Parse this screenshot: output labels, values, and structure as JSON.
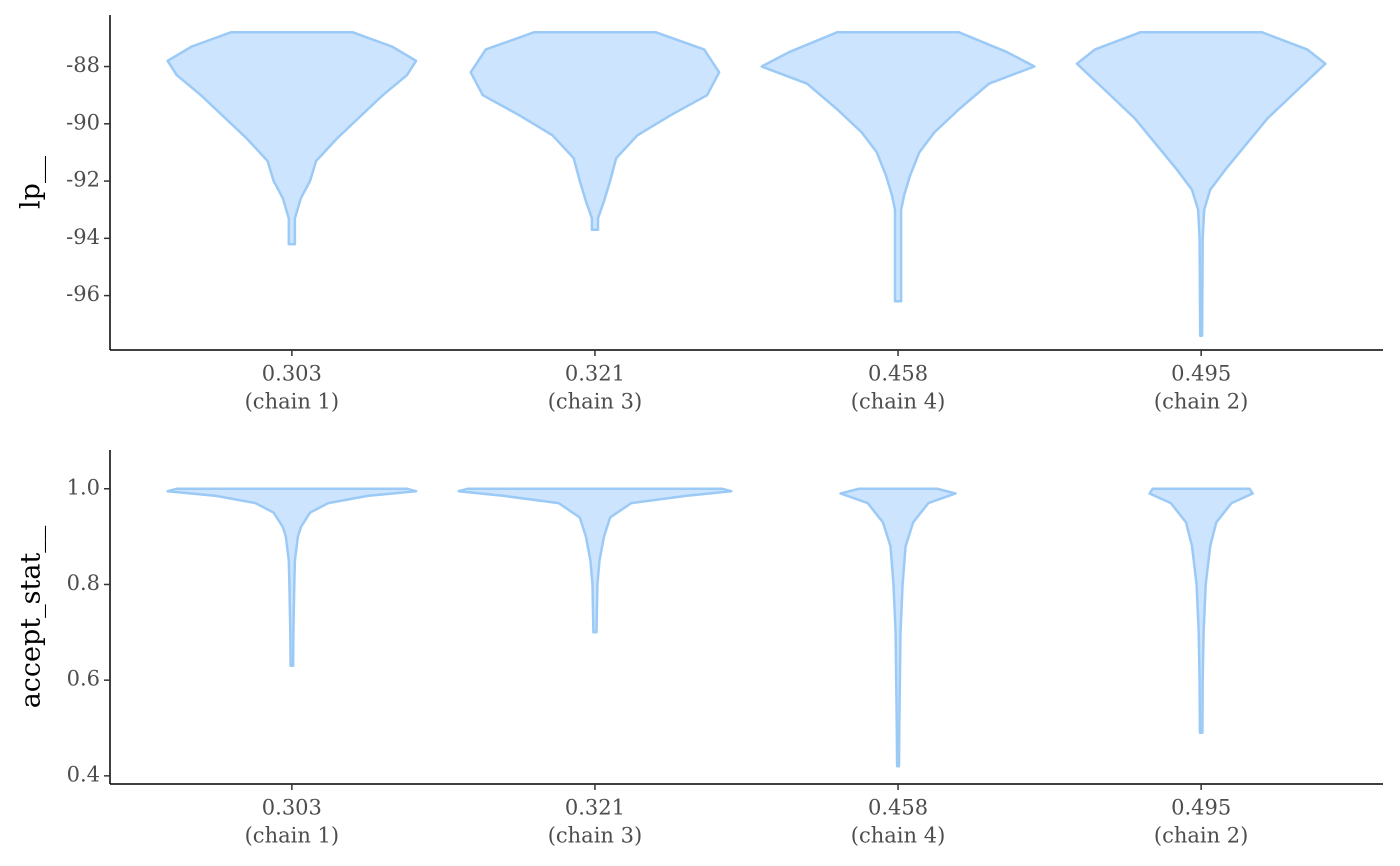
{
  "chart_data": [
    {
      "type": "violin",
      "y_label": "lp__",
      "categories": [
        "0.303",
        "0.321",
        "0.458",
        "0.495"
      ],
      "category_sublabels": [
        "(chain 1)",
        "(chain 3)",
        "(chain 4)",
        "(chain 2)"
      ],
      "fill": "#cce4fd",
      "color": "#9ccaf6",
      "ylim": [
        -97.9,
        -86.2
      ],
      "yticks": [
        -88,
        -90,
        -92,
        -94,
        -96
      ],
      "series": [
        {
          "y": [
            -86.8,
            -87.3,
            -87.8,
            -88.3,
            -89,
            -89.8,
            -90.5,
            -91.3,
            -92,
            -92.6,
            -93.3,
            -94.2
          ],
          "width": [
            0.2,
            0.33,
            0.41,
            0.38,
            0.3,
            0.22,
            0.15,
            0.08,
            0.06,
            0.03,
            0.01,
            0.01
          ]
        },
        {
          "y": [
            -86.8,
            -87.4,
            -88.2,
            -89,
            -89.7,
            -90.4,
            -91.2,
            -92,
            -92.7,
            -93.3,
            -93.7
          ],
          "width": [
            0.2,
            0.36,
            0.41,
            0.37,
            0.25,
            0.14,
            0.07,
            0.05,
            0.03,
            0.01,
            0.01
          ]
        },
        {
          "y": [
            -86.8,
            -87.5,
            -88,
            -88.6,
            -89.5,
            -90.3,
            -91,
            -91.8,
            -92.5,
            -93,
            -95,
            -96.2
          ],
          "width": [
            0.2,
            0.36,
            0.45,
            0.3,
            0.2,
            0.12,
            0.07,
            0.04,
            0.02,
            0.01,
            0.01,
            0.01
          ]
        },
        {
          "y": [
            -86.8,
            -87.4,
            -87.9,
            -88.8,
            -89.8,
            -90.7,
            -91.6,
            -92.3,
            -93,
            -94,
            -97.4
          ],
          "width": [
            0.2,
            0.35,
            0.41,
            0.32,
            0.22,
            0.15,
            0.08,
            0.03,
            0.01,
            0.005,
            0.003
          ]
        }
      ]
    },
    {
      "type": "violin",
      "y_label": "accept_stat__",
      "categories": [
        "0.303",
        "0.321",
        "0.458",
        "0.495"
      ],
      "category_sublabels": [
        "(chain 1)",
        "(chain 3)",
        "(chain 4)",
        "(chain 2)"
      ],
      "fill": "#cce4fd",
      "color": "#9ccaf6",
      "ylim": [
        0.383,
        1.081
      ],
      "yticks": [
        {
          "value": 1,
          "label": "1.0"
        },
        0.8,
        0.6,
        0.4
      ],
      "series": [
        {
          "y": [
            1,
            0.995,
            0.985,
            0.97,
            0.95,
            0.92,
            0.9,
            0.85,
            0.8,
            0.7,
            0.63
          ],
          "width": [
            0.38,
            0.41,
            0.25,
            0.12,
            0.06,
            0.03,
            0.02,
            0.01,
            0.008,
            0.005,
            0.004
          ]
        },
        {
          "y": [
            1,
            0.995,
            0.985,
            0.97,
            0.94,
            0.9,
            0.85,
            0.8,
            0.7
          ],
          "width": [
            0.42,
            0.45,
            0.3,
            0.12,
            0.05,
            0.03,
            0.015,
            0.008,
            0.005
          ]
        },
        {
          "y": [
            1,
            0.99,
            0.97,
            0.93,
            0.88,
            0.8,
            0.7,
            0.5,
            0.42
          ],
          "width": [
            0.13,
            0.19,
            0.1,
            0.05,
            0.025,
            0.015,
            0.008,
            0.004,
            0.003
          ]
        },
        {
          "y": [
            1,
            0.99,
            0.97,
            0.93,
            0.88,
            0.8,
            0.7,
            0.6,
            0.49
          ],
          "width": [
            0.16,
            0.17,
            0.1,
            0.05,
            0.03,
            0.015,
            0.008,
            0.005,
            0.004
          ]
        }
      ]
    }
  ]
}
